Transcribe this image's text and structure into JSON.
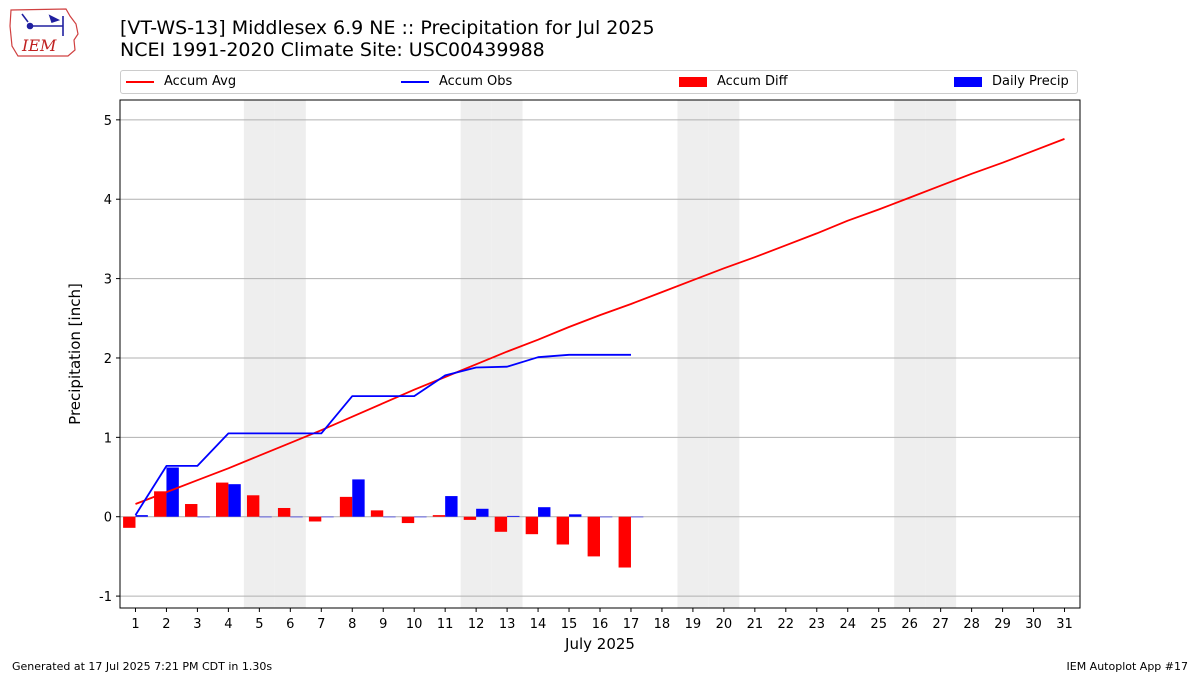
{
  "header": {
    "title_line1": "[VT-WS-13] Middlesex 6.9 NE :: Precipitation for Jul 2025",
    "title_line2": "NCEI 1991-2020 Climate Site: USC00439988",
    "logo_text": "IEM"
  },
  "footer": {
    "generated": "Generated at 17 Jul 2025 7:21 PM CDT in 1.30s",
    "app": "IEM Autoplot App #17"
  },
  "legend": [
    {
      "label": "Accum Avg",
      "color": "#ff0000",
      "kind": "line"
    },
    {
      "label": "Accum Obs",
      "color": "#0000ff",
      "kind": "line"
    },
    {
      "label": "Accum Diff",
      "color": "#ff0000",
      "kind": "bar"
    },
    {
      "label": "Daily Precip",
      "color": "#0000ff",
      "kind": "bar"
    }
  ],
  "chart_data": {
    "type": "bar",
    "title": "[VT-WS-13] Middlesex 6.9 NE :: Precipitation for Jul 2025",
    "subtitle": "NCEI 1991-2020 Climate Site: USC00439988",
    "xlabel": "July 2025",
    "ylabel": "Precipitation [inch]",
    "ylim": [
      -1.15,
      5.25
    ],
    "yticks": [
      -1,
      0,
      1,
      2,
      3,
      4,
      5
    ],
    "xlim": [
      0.5,
      31.5
    ],
    "x": [
      1,
      2,
      3,
      4,
      5,
      6,
      7,
      8,
      9,
      10,
      11,
      12,
      13,
      14,
      15,
      16,
      17,
      18,
      19,
      20,
      21,
      22,
      23,
      24,
      25,
      26,
      27,
      28,
      29,
      30,
      31
    ],
    "weekend_days": [
      5,
      6,
      12,
      13,
      19,
      20,
      26,
      27
    ],
    "grid": "horizontal",
    "legend_position": "top",
    "series": [
      {
        "name": "Accum Avg",
        "kind": "line",
        "color": "#ff0000",
        "x": [
          1,
          2,
          3,
          4,
          5,
          6,
          7,
          8,
          9,
          10,
          11,
          12,
          13,
          14,
          15,
          16,
          17,
          18,
          19,
          20,
          21,
          22,
          23,
          24,
          25,
          26,
          27,
          28,
          29,
          30,
          31
        ],
        "values": [
          0.16,
          0.31,
          0.46,
          0.61,
          0.77,
          0.93,
          1.09,
          1.26,
          1.43,
          1.6,
          1.76,
          1.92,
          2.08,
          2.23,
          2.39,
          2.54,
          2.68,
          2.83,
          2.98,
          3.13,
          3.27,
          3.42,
          3.57,
          3.73,
          3.87,
          4.02,
          4.17,
          4.32,
          4.46,
          4.61,
          4.76
        ]
      },
      {
        "name": "Accum Obs",
        "kind": "line",
        "color": "#0000ff",
        "x": [
          1,
          2,
          3,
          4,
          5,
          6,
          7,
          8,
          9,
          10,
          11,
          12,
          13,
          14,
          15,
          16,
          17
        ],
        "values": [
          0.02,
          0.64,
          0.64,
          1.05,
          1.05,
          1.05,
          1.05,
          1.52,
          1.52,
          1.52,
          1.78,
          1.88,
          1.89,
          2.01,
          2.04,
          2.04,
          2.04
        ]
      },
      {
        "name": "Accum Diff",
        "kind": "bar",
        "color": "#ff0000",
        "x": [
          1,
          2,
          3,
          4,
          5,
          6,
          7,
          8,
          9,
          10,
          11,
          12,
          13,
          14,
          15,
          16,
          17
        ],
        "values": [
          -0.14,
          0.32,
          0.16,
          0.43,
          0.27,
          0.11,
          -0.06,
          0.25,
          0.08,
          -0.08,
          0.02,
          -0.04,
          -0.19,
          -0.22,
          -0.35,
          -0.5,
          -0.64
        ]
      },
      {
        "name": "Daily Precip",
        "kind": "bar",
        "color": "#0000ff",
        "x": [
          1,
          2,
          3,
          4,
          5,
          6,
          7,
          8,
          9,
          10,
          11,
          12,
          13,
          14,
          15,
          16,
          17
        ],
        "values": [
          0.02,
          0.62,
          0.0,
          0.41,
          0.0,
          0.0,
          0.0,
          0.47,
          0.0,
          0.0,
          0.26,
          0.1,
          0.01,
          0.12,
          0.03,
          0.0,
          0.0
        ]
      }
    ]
  }
}
